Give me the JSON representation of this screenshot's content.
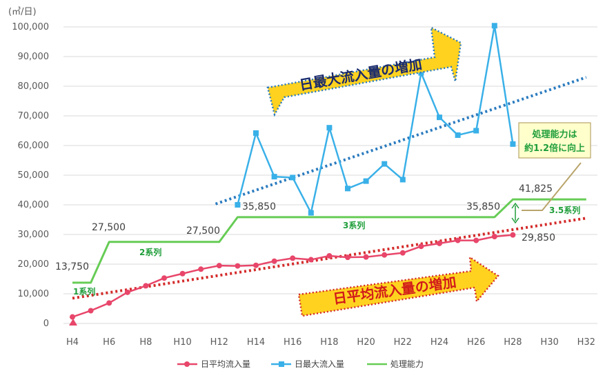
{
  "chart_data": {
    "type": "line",
    "unit_label": "(㎥/日)",
    "categories": [
      "H4",
      "H5",
      "H6",
      "H7",
      "H8",
      "H9",
      "H10",
      "H11",
      "H12",
      "H13",
      "H14",
      "H15",
      "H16",
      "H17",
      "H18",
      "H19",
      "H20",
      "H21",
      "H22",
      "H23",
      "H24",
      "H25",
      "H26",
      "H27",
      "H28",
      "H29",
      "H30",
      "H31",
      "H32"
    ],
    "xtick_labels": [
      "H4",
      "H6",
      "H8",
      "H10",
      "H12",
      "H14",
      "H16",
      "H18",
      "H20",
      "H22",
      "H24",
      "H26",
      "H28",
      "H30",
      "H32"
    ],
    "ylim": [
      0,
      100000
    ],
    "ytick_labels": [
      "0",
      "10,000",
      "20,000",
      "30,000",
      "40,000",
      "50,000",
      "60,000",
      "70,000",
      "80,000",
      "90,000",
      "100,000"
    ],
    "series": [
      {
        "name": "日平均流入量",
        "color": "#e8466a",
        "values": [
          2200,
          4300,
          6900,
          10500,
          12700,
          15300,
          16800,
          18300,
          19500,
          19400,
          19600,
          21000,
          22000,
          21500,
          22800,
          22300,
          22400,
          23100,
          23800,
          26000,
          27000,
          28000,
          28000,
          29300,
          29850,
          null,
          null,
          null,
          null
        ]
      },
      {
        "name": "日最大流入量",
        "color": "#39b0e8",
        "values": [
          null,
          null,
          null,
          null,
          null,
          null,
          null,
          null,
          null,
          40000,
          64200,
          49500,
          49200,
          37300,
          66000,
          45500,
          48000,
          53800,
          48500,
          84500,
          69500,
          63500,
          65000,
          100400,
          60500,
          null,
          null,
          null,
          null
        ]
      },
      {
        "name": "処理能力",
        "color": "#66cc55",
        "values": [
          13750,
          13750,
          27500,
          27500,
          27500,
          27500,
          27500,
          27500,
          27500,
          35850,
          35850,
          35850,
          35850,
          35850,
          35850,
          35850,
          35850,
          35850,
          35850,
          35850,
          35850,
          35850,
          35850,
          35850,
          41825,
          41825,
          41825,
          41825,
          41825
        ]
      }
    ],
    "value_labels": [
      "13,750",
      "27,500",
      "27,500",
      "35,850",
      "35,850",
      "41,825",
      "29,850"
    ],
    "system_labels": [
      "1系列",
      "2系列",
      "3系列",
      "3.5系列"
    ],
    "trend_lines": [
      {
        "name": "average-trend",
        "color": "#d42a2a",
        "from": [
          4,
          8500
        ],
        "to": [
          32,
          35500
        ]
      },
      {
        "name": "max-trend",
        "color": "#2a7bbf",
        "from": [
          11.8,
          40300
        ],
        "to": [
          32,
          83000
        ]
      }
    ],
    "banners": {
      "max_increase": "日最大流入量の増加",
      "avg_increase": "日平均流入量の増加"
    },
    "callout": {
      "line1": "処理能力は",
      "line2": "約1.2倍に向上"
    },
    "legend": [
      "日平均流入量",
      "日最大流入量",
      "処理能力"
    ],
    "colors": {
      "trend_up_marker": "#e8466a",
      "banner_fill": "#ffd21f",
      "banner_text_max": "#1a2a6c",
      "banner_text_avg": "#d11a1a",
      "callout_border": "#b8a46a",
      "callout_fill": "#ffffcc"
    }
  }
}
